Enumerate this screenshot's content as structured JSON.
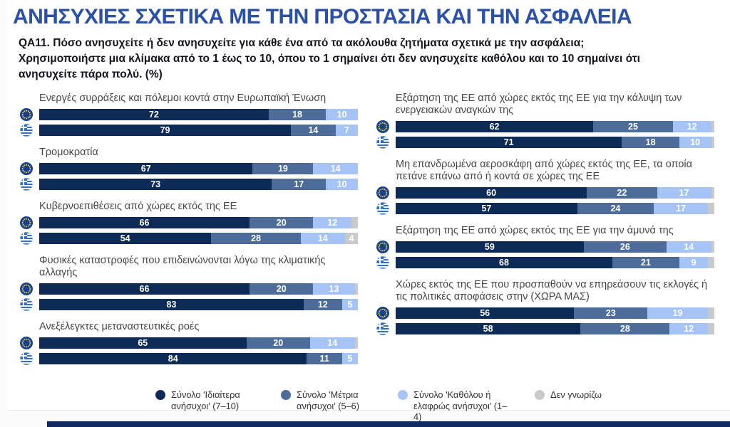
{
  "header": {
    "title": "ΑΝΗΣΥΧΙΕΣ ΣΧΕΤΙΚΑ ΜΕ ΤΗΝ ΠΡΟΣΤΑΣΙΑ ΚΑΙ ΤΗΝ ΑΣΦΑΛΕΙΑ",
    "question": "QA11. Πόσο ανησυχείτε ή δεν ανησυχείτε για κάθε ένα από τα ακόλουθα ζητήματα σχετικά με την ασφάλεια; Χρησιμοποιήστε μια κλίμακα από το 1 έως το 10, όπου το 1 σημαίνει ότι δεν ανησυχείτε καθόλου και το 10 σημαίνει ότι ανησυχείτε πάρα πολύ. (%)"
  },
  "chart_data": {
    "type": "bar",
    "orientation": "horizontal_stacked",
    "unit": "%",
    "legend_position": "bottom",
    "label_min_value": 4,
    "series": [
      {
        "name": "Σύνολο 'Ιδιαίτερα ανήσυχοι' (7–10)",
        "color": "#0e2a56"
      },
      {
        "name": "Σύνολο 'Μέτρια ανήσυχοι' (5–6)",
        "color": "#4d6c99"
      },
      {
        "name": "Σύνολο 'Καθόλου ή ελαφρώς ανήσυχοι' (1–4)",
        "color": "#a6c3f5"
      },
      {
        "name": "Δεν γνωρίζω",
        "color": "#c9c9c9"
      }
    ],
    "row_entities": [
      {
        "id": "eu",
        "label": "European Union"
      },
      {
        "id": "el",
        "label": "Greece"
      }
    ],
    "columns": [
      {
        "items": [
          {
            "label": "Ενεργές συρράξεις και πόλεμοι κοντά στην Ευρωπαϊκή Ένωση",
            "rows": [
              {
                "entity": "eu",
                "values": [
                  72,
                  18,
                  10,
                  0
                ]
              },
              {
                "entity": "el",
                "values": [
                  79,
                  14,
                  7,
                  0
                ]
              }
            ]
          },
          {
            "label": "Τρομοκρατία",
            "rows": [
              {
                "entity": "eu",
                "values": [
                  67,
                  19,
                  14,
                  0
                ]
              },
              {
                "entity": "el",
                "values": [
                  73,
                  17,
                  10,
                  0
                ]
              }
            ]
          },
          {
            "label": "Κυβερνοεπιθέσεις από χώρες εκτός της ΕΕ",
            "rows": [
              {
                "entity": "eu",
                "values": [
                  66,
                  20,
                  12,
                  2
                ]
              },
              {
                "entity": "el",
                "values": [
                  54,
                  28,
                  14,
                  4
                ]
              }
            ]
          },
          {
            "label": "Φυσικές καταστροφές που επιδεινώνονται λόγω της κλιματικής αλλαγής",
            "rows": [
              {
                "entity": "eu",
                "values": [
                  66,
                  20,
                  13,
                  1
                ]
              },
              {
                "entity": "el",
                "values": [
                  83,
                  12,
                  5,
                  0
                ]
              }
            ]
          },
          {
            "label": "Ανεξέλεγκτες μεταναστευτικές ροές",
            "rows": [
              {
                "entity": "eu",
                "values": [
                  65,
                  20,
                  14,
                  1
                ]
              },
              {
                "entity": "el",
                "values": [
                  84,
                  11,
                  5,
                  0
                ]
              }
            ]
          }
        ]
      },
      {
        "items": [
          {
            "label": "Εξάρτηση της ΕΕ από χώρες εκτός της ΕΕ για την κάλυψη των ενεργειακών αναγκών της",
            "rows": [
              {
                "entity": "eu",
                "values": [
                  62,
                  25,
                  12,
                  1
                ]
              },
              {
                "entity": "el",
                "values": [
                  71,
                  18,
                  10,
                  1
                ]
              }
            ]
          },
          {
            "label": "Μη επανδρωμένα αεροσκάφη από χώρες εκτός της ΕΕ, τα οποία πετάνε επάνω από ή κοντά σε χώρες της ΕΕ",
            "rows": [
              {
                "entity": "eu",
                "values": [
                  60,
                  22,
                  17,
                  1
                ]
              },
              {
                "entity": "el",
                "values": [
                  57,
                  24,
                  17,
                  2
                ]
              }
            ]
          },
          {
            "label": "Εξάρτηση της ΕΕ από χώρες εκτός της ΕΕ για την άμυνά της",
            "rows": [
              {
                "entity": "eu",
                "values": [
                  59,
                  26,
                  14,
                  1
                ]
              },
              {
                "entity": "el",
                "values": [
                  68,
                  21,
                  9,
                  2
                ]
              }
            ]
          },
          {
            "label": "Χώρες εκτός της ΕΕ που προσπαθούν να επηρεάσουν τις εκλογές ή τις πολιτικές αποφάσεις στην (ΧΩΡΑ ΜΑΣ)",
            "rows": [
              {
                "entity": "eu",
                "values": [
                  56,
                  23,
                  19,
                  2
                ]
              },
              {
                "entity": "el",
                "values": [
                  58,
                  28,
                  12,
                  2
                ]
              }
            ]
          }
        ]
      }
    ]
  },
  "theme": {
    "title_color": "#2b50a8",
    "text_color": "#14141e",
    "category_color": "#474747",
    "bar_value_color": "#ffffff",
    "footer_bar_color": "#11295e",
    "eu_flag_blue": "#17418f",
    "eu_star_yellow": "#f2d33c",
    "greek_flag_blue": "#2e6fc8"
  }
}
